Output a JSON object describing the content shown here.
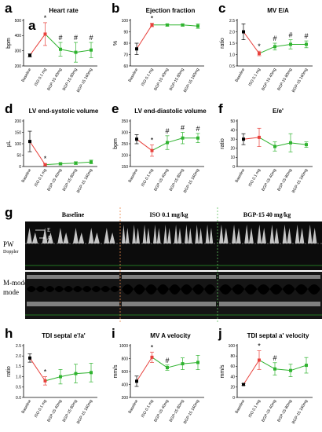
{
  "chart_data": [
    {
      "id": "a",
      "panel_label": "a",
      "extra_label": "a",
      "type": "line",
      "title": "Heart rate",
      "ylabel": "bpm",
      "categories": [
        "Baseline",
        "ISO 0.1 mg",
        "BGP-15 40mg",
        "BGP-15 80mg",
        "BGP-15 160mg"
      ],
      "values": [
        270,
        410,
        310,
        290,
        305
      ],
      "errors": [
        10,
        75,
        45,
        65,
        50
      ],
      "colors": [
        "#000000",
        "#e8413c",
        "#2fb32f",
        "#2fb32f",
        "#2fb32f"
      ],
      "significance": [
        "",
        "*",
        "#",
        "#",
        "#"
      ],
      "ylim": [
        200,
        500
      ],
      "yticks": [
        "200",
        "300",
        "400",
        "500"
      ]
    },
    {
      "id": "b",
      "panel_label": "b",
      "type": "line",
      "title": "Ejection fraction",
      "ylabel": "%",
      "categories": [
        "Baseline",
        "ISO 0.1 mg",
        "BGP-15 40mg",
        "BGP-15 80mg",
        "BGP-15 160mg"
      ],
      "values": [
        75,
        96,
        96,
        96,
        95
      ],
      "errors": [
        5,
        1.5,
        1,
        1,
        2
      ],
      "colors": [
        "#000000",
        "#e8413c",
        "#2fb32f",
        "#2fb32f",
        "#2fb32f"
      ],
      "significance": [
        "",
        "*",
        "",
        "",
        ""
      ],
      "ylim": [
        60,
        100
      ],
      "yticks": [
        "60",
        "70",
        "80",
        "90",
        "100"
      ]
    },
    {
      "id": "c",
      "panel_label": "c",
      "type": "line",
      "title": "MV E/A",
      "ylabel": "ratio",
      "categories": [
        "Baseline",
        "ISO 0.1 mg",
        "BGP-15 40mg",
        "BGP-15 80mg",
        "BGP-15 160mg"
      ],
      "values": [
        2.0,
        1.05,
        1.35,
        1.45,
        1.45
      ],
      "errors": [
        0.35,
        0.1,
        0.15,
        0.2,
        0.15
      ],
      "colors": [
        "#000000",
        "#e8413c",
        "#2fb32f",
        "#2fb32f",
        "#2fb32f"
      ],
      "significance": [
        "",
        "*",
        "#",
        "#",
        "#"
      ],
      "ylim": [
        0.5,
        2.5
      ],
      "yticks": [
        "0.5",
        "1.0",
        "1.5",
        "2.0",
        "2.5"
      ]
    },
    {
      "id": "d",
      "panel_label": "d",
      "type": "line",
      "title": "LV end-systolic volume",
      "ylabel": "µL",
      "categories": [
        "Baseline",
        "ISO 0.1 mg",
        "BGP-15 40mg",
        "BGP-15 80mg",
        "BGP-15 160mg"
      ],
      "values": [
        110,
        8,
        12,
        15,
        20
      ],
      "errors": [
        45,
        5,
        5,
        6,
        8
      ],
      "colors": [
        "#000000",
        "#e8413c",
        "#2fb32f",
        "#2fb32f",
        "#2fb32f"
      ],
      "significance": [
        "",
        "*",
        "",
        "",
        ""
      ],
      "ylim": [
        0,
        200
      ],
      "yticks": [
        "0",
        "50",
        "100",
        "150",
        "200"
      ]
    },
    {
      "id": "e",
      "panel_label": "e",
      "type": "line",
      "title": "LV end-diastolic volume",
      "ylabel": "bpm",
      "categories": [
        "Baseline",
        "ISO 0.1 mg",
        "BGP-15 40mg",
        "BGP-15 80mg",
        "BGP-15 160mg"
      ],
      "values": [
        270,
        220,
        255,
        275,
        275
      ],
      "errors": [
        20,
        25,
        30,
        25,
        20
      ],
      "colors": [
        "#000000",
        "#e8413c",
        "#2fb32f",
        "#2fb32f",
        "#2fb32f"
      ],
      "significance": [
        "",
        "*",
        "#",
        "#",
        "#"
      ],
      "ylim": [
        150,
        350
      ],
      "yticks": [
        "150",
        "200",
        "250",
        "300",
        "350"
      ]
    },
    {
      "id": "f",
      "panel_label": "f",
      "type": "line",
      "title": "E/e'",
      "ylabel": "ratio",
      "categories": [
        "Baseline",
        "ISO 0.1 mg",
        "BGP-15 40mg",
        "BGP-15 80mg",
        "BGP-15 160mg"
      ],
      "values": [
        30,
        32,
        22,
        26,
        24
      ],
      "errors": [
        6,
        10,
        5,
        10,
        3
      ],
      "colors": [
        "#000000",
        "#e8413c",
        "#2fb32f",
        "#2fb32f",
        "#2fb32f"
      ],
      "significance": [
        "",
        "",
        "",
        "",
        ""
      ],
      "ylim": [
        0,
        50
      ],
      "yticks": [
        "0",
        "10",
        "20",
        "30",
        "40",
        "50"
      ]
    },
    {
      "id": "h",
      "panel_label": "h",
      "type": "line",
      "title": "TDI septal e'/a'",
      "ylabel": "ratio",
      "categories": [
        "Baseline",
        "ISO 0.1 mg",
        "BGP-15 40mg",
        "BGP-15 80mg",
        "BGP-15 160mg"
      ],
      "values": [
        1.9,
        0.8,
        1.0,
        1.15,
        1.2
      ],
      "errors": [
        0.2,
        0.2,
        0.35,
        0.45,
        0.45
      ],
      "colors": [
        "#000000",
        "#e8413c",
        "#2fb32f",
        "#2fb32f",
        "#2fb32f"
      ],
      "significance": [
        "",
        "*",
        "",
        "",
        ""
      ],
      "ylim": [
        0,
        2.5
      ],
      "yticks": [
        "0.0",
        "0.5",
        "1.0",
        "1.5",
        "2.0",
        "2.5"
      ]
    },
    {
      "id": "i",
      "panel_label": "i",
      "type": "line",
      "title": "MV A velocity",
      "ylabel": "mm/s",
      "categories": [
        "Baseline",
        "ISO 0.1 mg",
        "BGP-15 40mg",
        "BGP-15 80mg",
        "BGP-15 160mg"
      ],
      "values": [
        450,
        820,
        660,
        720,
        740
      ],
      "errors": [
        80,
        80,
        40,
        90,
        110
      ],
      "colors": [
        "#000000",
        "#e8413c",
        "#2fb32f",
        "#2fb32f",
        "#2fb32f"
      ],
      "significance": [
        "",
        "*",
        "#",
        "",
        ""
      ],
      "ylim": [
        200,
        1000
      ],
      "yticks": [
        "200",
        "400",
        "600",
        "800",
        "1000"
      ]
    },
    {
      "id": "j",
      "panel_label": "j",
      "type": "line",
      "title": "TDI septal a' velocity",
      "ylabel": "mm/s",
      "categories": [
        "Baseline",
        "ISO 0.1 mg",
        "BGP-15 40mg",
        "BGP-15 80mg",
        "BGP-15 160mg"
      ],
      "values": [
        25,
        72,
        55,
        52,
        62
      ],
      "errors": [
        2,
        18,
        12,
        12,
        15
      ],
      "colors": [
        "#000000",
        "#e8413c",
        "#2fb32f",
        "#2fb32f",
        "#2fb32f"
      ],
      "significance": [
        "",
        "*",
        "#",
        "",
        ""
      ],
      "ylim": [
        0,
        100
      ],
      "yticks": [
        "0",
        "20",
        "40",
        "60",
        "80",
        "100"
      ]
    }
  ],
  "echo": {
    "panel_label": "g",
    "columns": [
      "Baseline",
      "ISO 0.1 mg/kg",
      "BGP-15 40 mg/kg"
    ],
    "rows": [
      "PW",
      "M-mode"
    ],
    "row_sub": "Doppler",
    "wave_labels": [
      "E",
      "A"
    ],
    "divider_colors": [
      "#e8874a",
      "#5fbf5f"
    ]
  }
}
